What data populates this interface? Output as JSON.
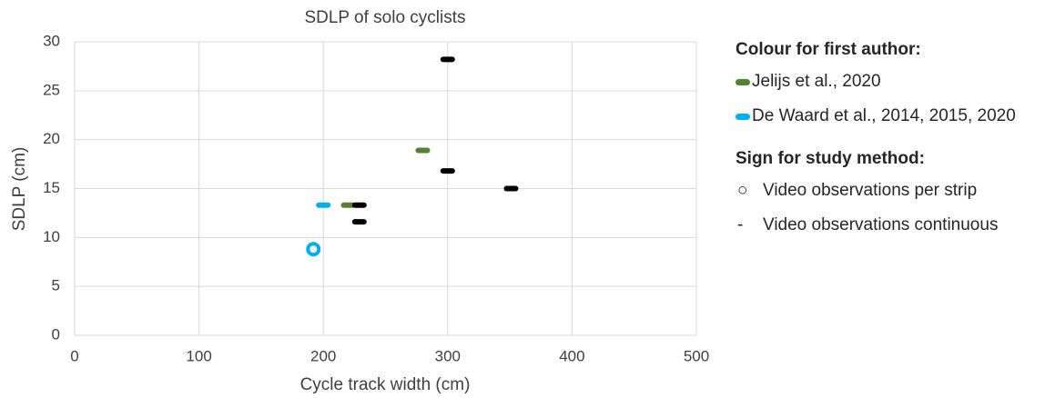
{
  "chart_data": {
    "type": "scatter",
    "title": "SDLP of solo cyclists",
    "xlabel": "Cycle track width (cm)",
    "ylabel": "SDLP (cm)",
    "xlim": [
      0,
      500
    ],
    "ylim": [
      0,
      30
    ],
    "xticks": [
      0,
      100,
      200,
      300,
      400,
      500
    ],
    "yticks": [
      0,
      5,
      10,
      15,
      20,
      25,
      30
    ],
    "grid": true,
    "series": [
      {
        "name": "Jelijs et al., 2020",
        "color": "#548235",
        "markers": [
          "dash",
          "dash"
        ],
        "x": [
          280,
          220
        ],
        "values": [
          18.9,
          13.3
        ]
      },
      {
        "name": "De Waard et al., 2014, 2015, 2020",
        "color": "#00b0f0",
        "markers": [
          "dash",
          "circle"
        ],
        "x": [
          200,
          192
        ],
        "values": [
          13.3,
          8.8
        ]
      },
      {
        "color": "#000000",
        "markers": [
          "dash",
          "dash",
          "dash",
          "dash",
          "dash"
        ],
        "x": [
          300,
          300,
          351,
          229,
          229
        ],
        "values": [
          28.2,
          16.8,
          15.0,
          13.3,
          11.6
        ]
      }
    ],
    "legend": {
      "colour_title": "Colour for first author:",
      "sign_title": "Sign for study method:",
      "signs": [
        {
          "symbol": "○",
          "label": "Video observations per strip"
        },
        {
          "symbol": "-",
          "label": "Video observations continuous"
        }
      ]
    }
  }
}
